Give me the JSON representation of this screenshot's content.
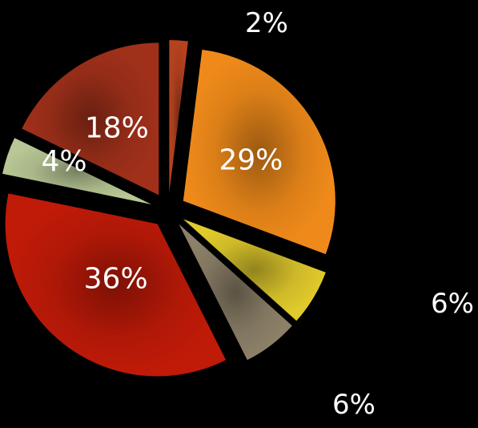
{
  "chart_data": {
    "type": "pie",
    "title": "",
    "slices": [
      {
        "label": "2%",
        "value": 2,
        "color": "#b5421f"
      },
      {
        "label": "29%",
        "value": 29,
        "color": "#ef8a1a"
      },
      {
        "label": "6%",
        "value": 6,
        "color": "#e0ca2c"
      },
      {
        "label": "6%",
        "value": 6,
        "color": "#8c8068"
      },
      {
        "label": "36%",
        "value": 36,
        "color": "#c01a08"
      },
      {
        "label": "4%",
        "value": 4,
        "color": "#b8c795"
      },
      {
        "label": "18%",
        "value": 18,
        "color": "#a0301a"
      }
    ],
    "exploded": true,
    "legend": "none",
    "background": "#000000"
  }
}
